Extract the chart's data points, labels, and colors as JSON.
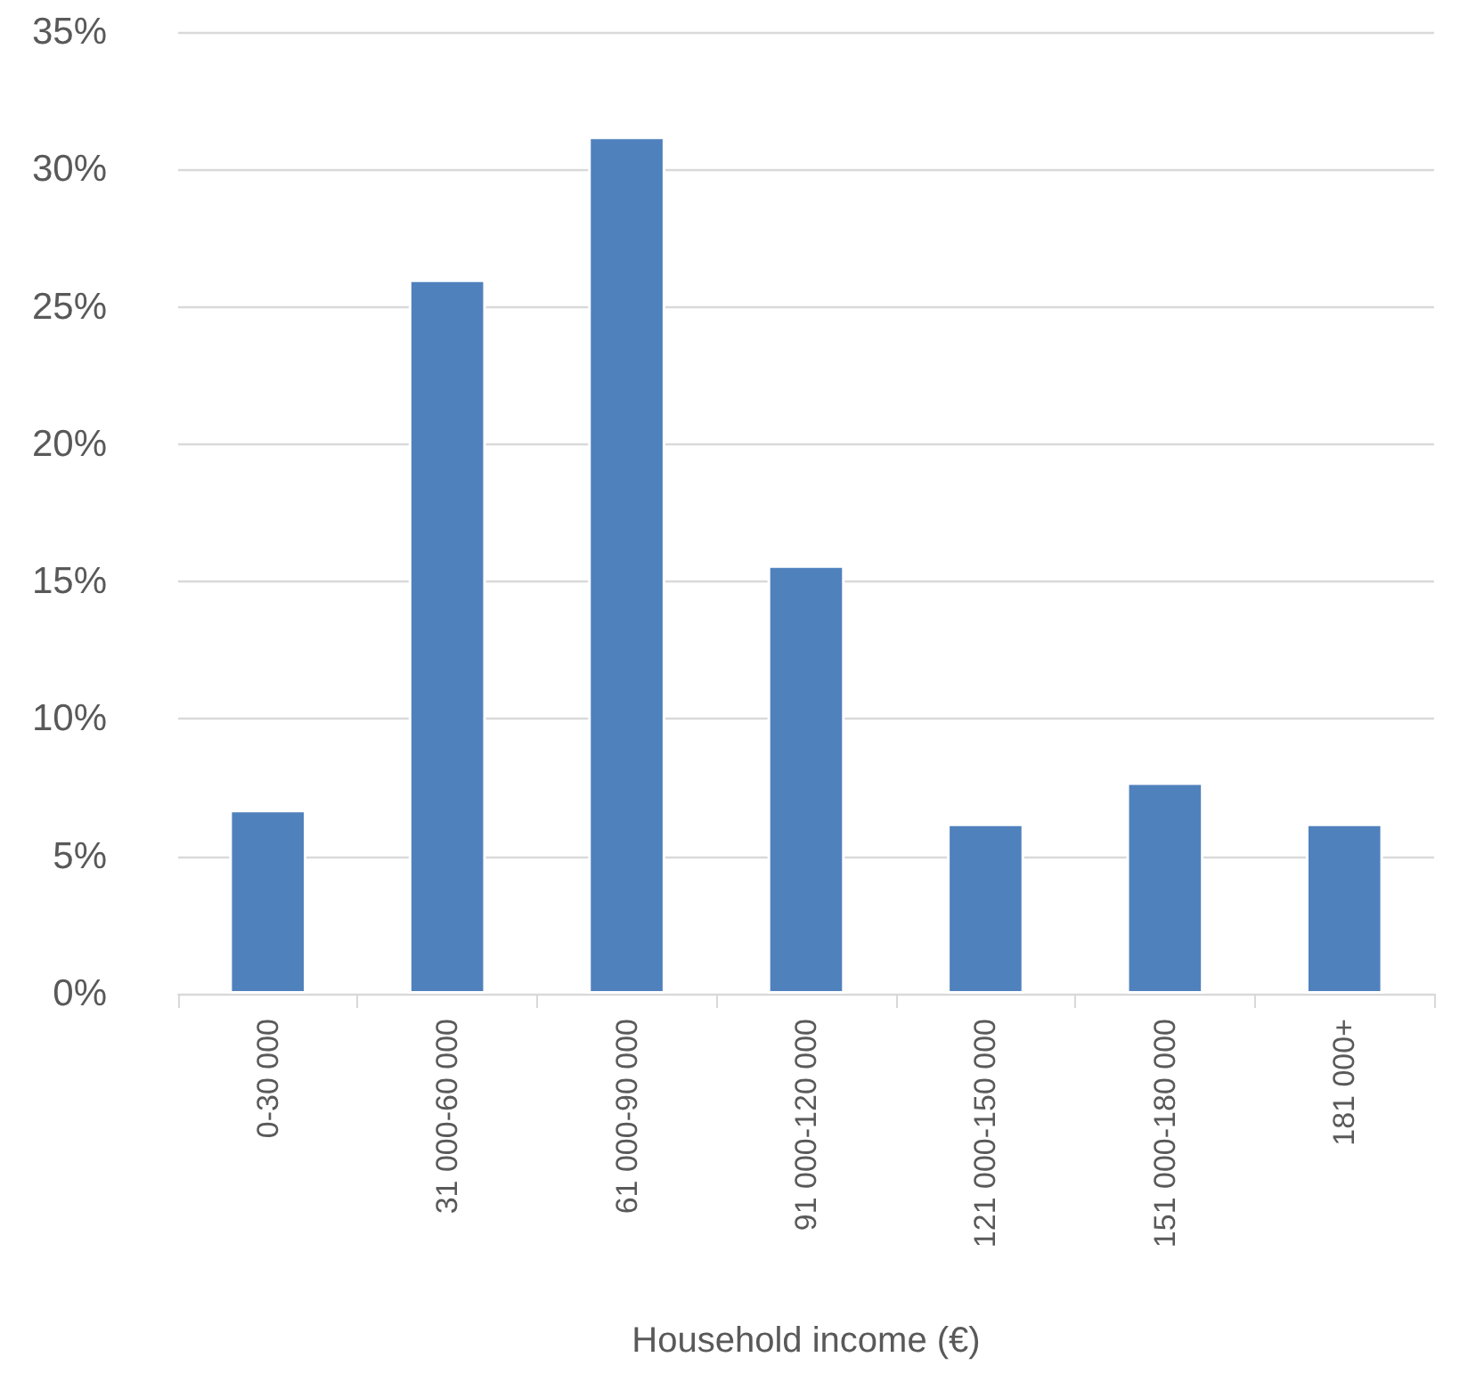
{
  "chart_data": {
    "type": "bar",
    "xlabel": "Household income (€)",
    "categories": [
      "0-30 000",
      "31 000-60 000",
      "61 000-90 000",
      "91 000-120 000",
      "121 000-150 000",
      "151 000-180 000",
      "181 000+"
    ],
    "values": [
      6.7,
      26.0,
      31.2,
      15.6,
      6.2,
      7.7,
      6.2
    ],
    "color": "#4f81bd",
    "ylim": [
      0,
      35
    ],
    "yticks": [
      {
        "value": 0,
        "label": "0%"
      },
      {
        "value": 5,
        "label": "5%"
      },
      {
        "value": 10,
        "label": "10%"
      },
      {
        "value": 15,
        "label": "15%"
      },
      {
        "value": 20,
        "label": "20%"
      },
      {
        "value": 25,
        "label": "25%"
      },
      {
        "value": 30,
        "label": "30%"
      },
      {
        "value": 35,
        "label": "35%"
      }
    ],
    "grid": true
  }
}
